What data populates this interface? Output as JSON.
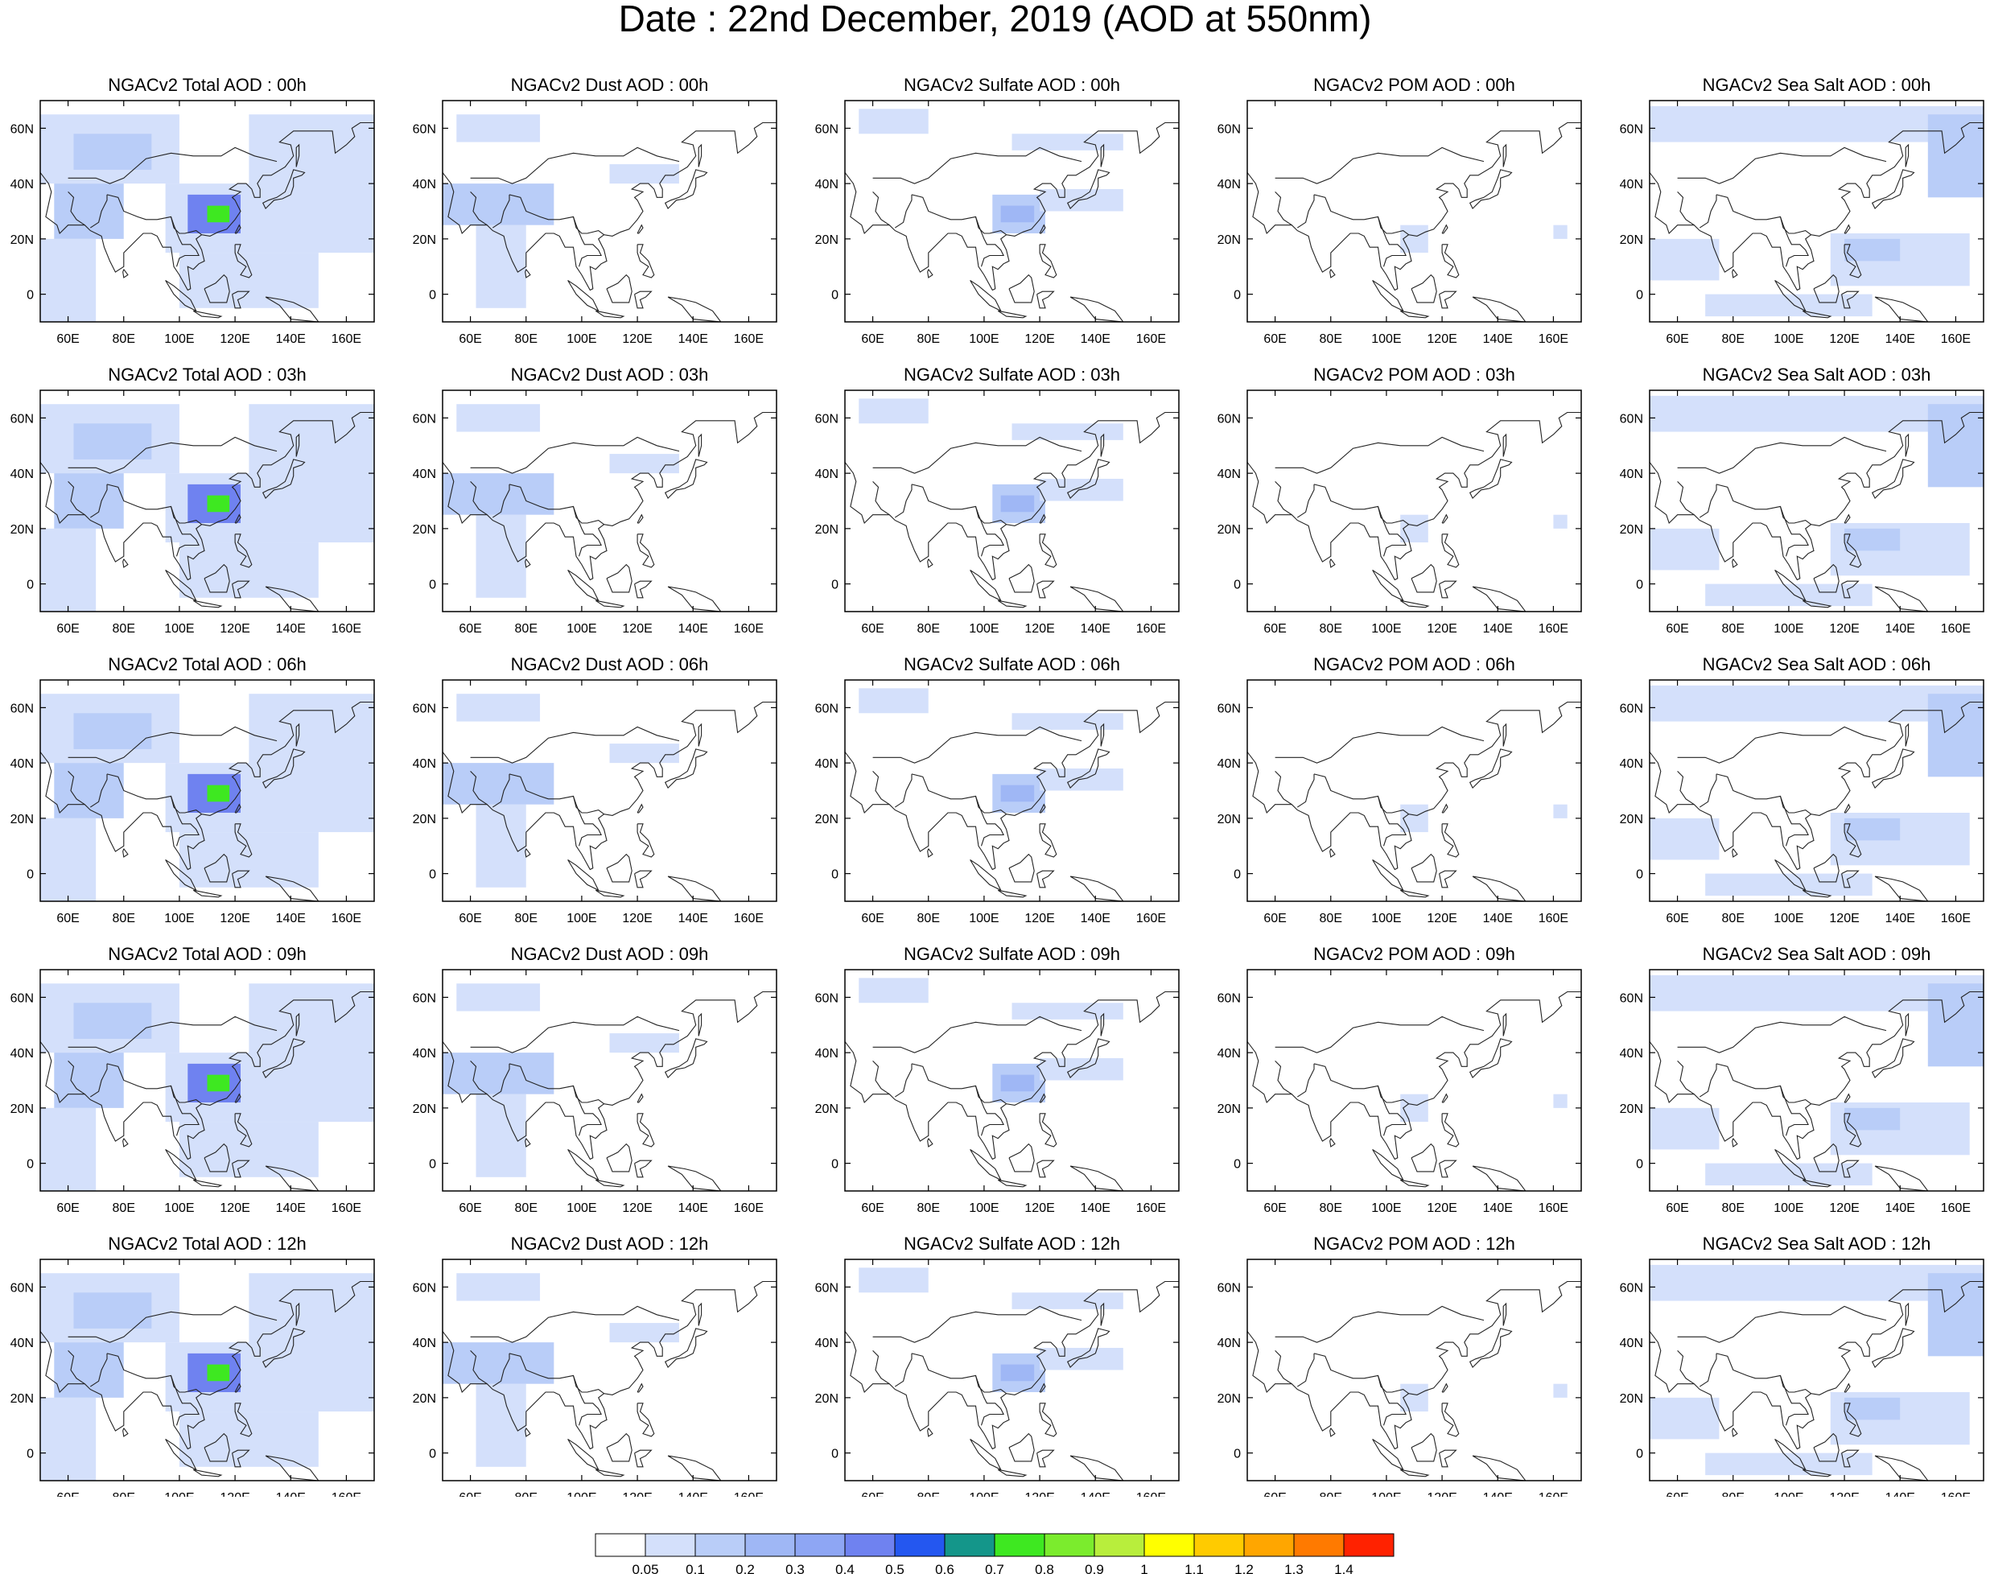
{
  "title": "Date : 22nd December, 2019 (AOD at 550nm)",
  "columns": [
    "total",
    "dust",
    "sulfate",
    "pom",
    "seasalt"
  ],
  "hours": [
    "00h",
    "03h",
    "06h",
    "09h",
    "12h"
  ],
  "panel_titles": [
    [
      "NGACv2 Total AOD : 00h",
      "NGACv2 Dust AOD : 00h",
      "NGACv2 Sulfate AOD : 00h",
      "NGACv2 POM AOD : 00h",
      "NGACv2 Sea Salt AOD : 00h"
    ],
    [
      "NGACv2 Total AOD : 03h",
      "NGACv2 Dust AOD : 03h",
      "NGACv2 Sulfate AOD : 03h",
      "NGACv2 POM AOD : 03h",
      "NGACv2 Sea Salt AOD : 03h"
    ],
    [
      "NGACv2 Total AOD : 06h",
      "NGACv2 Dust AOD : 06h",
      "NGACv2 Sulfate AOD : 06h",
      "NGACv2 POM AOD : 06h",
      "NGACv2 Sea Salt AOD : 06h"
    ],
    [
      "NGACv2 Total AOD : 09h",
      "NGACv2 Dust AOD : 09h",
      "NGACv2 Sulfate AOD : 09h",
      "NGACv2 POM AOD : 09h",
      "NGACv2 Sea Salt  AOD : 09h"
    ],
    [
      "NGACv2 Total AOD  : 12h",
      "NGACv2 Dust AOD : 12h",
      "NGACv2 Sulfate AOD : 12h",
      "NGACv2 POM  AOD : 12h",
      "NGACv2 Sea Salt  AOD : 12h"
    ]
  ],
  "map": {
    "lon_range": [
      50,
      170
    ],
    "lat_range": [
      -10,
      70
    ],
    "x_ticks": [
      "60E",
      "80E",
      "100E",
      "120E",
      "140E",
      "160E"
    ],
    "x_tick_values": [
      60,
      80,
      100,
      120,
      140,
      160
    ],
    "y_ticks": [
      "0",
      "20N",
      "40N",
      "60N"
    ],
    "y_tick_values": [
      0,
      20,
      40,
      60
    ]
  },
  "colorbar": {
    "labels": [
      "0.05",
      "0.1",
      "0.2",
      "0.3",
      "0.4",
      "0.5",
      "0.6",
      "0.7",
      "0.8",
      "0.9",
      "1",
      "1.1",
      "1.2",
      "1.3",
      "1.4"
    ],
    "colors": [
      "#ffffff",
      "#d4e0fb",
      "#b9cdf8",
      "#9fb7f5",
      "#8ea6f4",
      "#6f82f0",
      "#2457f0",
      "#14968a",
      "#3ee821",
      "#7bec2d",
      "#b8ee3c",
      "#ffff00",
      "#ffcb00",
      "#ffa600",
      "#ff7a00",
      "#ff2200"
    ]
  },
  "region_colors": {
    "light": "#d4e0fb",
    "mid": "#b9cdf8",
    "dark": "#9fb7f5",
    "deep": "#6f82f0",
    "green": "#3ee821"
  }
}
